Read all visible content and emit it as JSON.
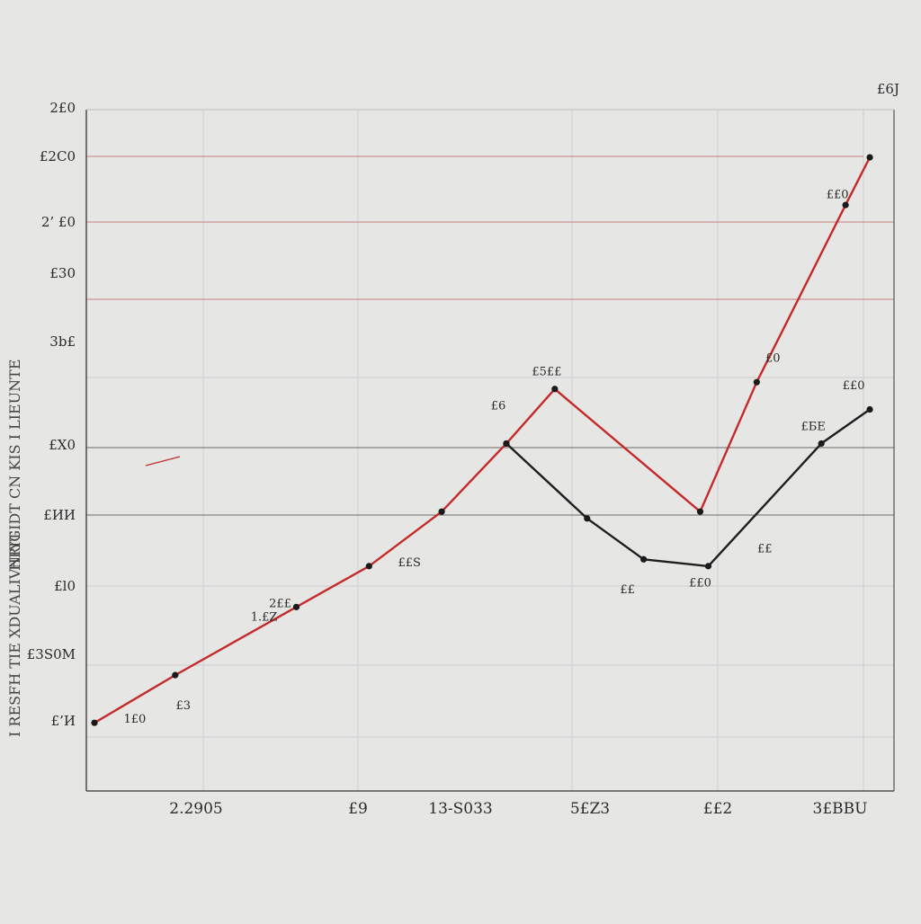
{
  "chart_data": {
    "type": "line",
    "title": "",
    "corner_label": "£6Ј",
    "ylabel_lines": [
      "HRIGIDT CN KIS I LIEUNTE",
      "I RESFH TIE XDUALIVNIYT"
    ],
    "y_tick_labels": [
      "2£0",
      "£2C0",
      "2’ £0",
      "£30",
      "3b£",
      "£X0",
      "£ИИ",
      "£l0",
      "£3S0М",
      "£’И"
    ],
    "x_tick_labels": [
      "2.2905",
      "£9",
      "13‐S033",
      "5£Z3",
      "££2",
      "3£ВВU"
    ],
    "colors": {
      "series_red": "#c42a2a",
      "series_black": "#1e1e1e",
      "grid": "#cfcfcf",
      "ref_line": "#c97f7f"
    },
    "x_range": [
      0,
      100
    ],
    "y_range": [
      0,
      100
    ],
    "series": [
      {
        "color": "#c42a2a",
        "points": [
          {
            "x": 1,
            "y": 10
          },
          {
            "x": 11,
            "y": 17
          },
          {
            "x": 26,
            "y": 27
          },
          {
            "x": 35,
            "y": 33
          },
          {
            "x": 44,
            "y": 41
          },
          {
            "x": 52,
            "y": 51
          },
          {
            "x": 58,
            "y": 59
          },
          {
            "x": 76,
            "y": 41
          },
          {
            "x": 83,
            "y": 60
          },
          {
            "x": 94,
            "y": 86
          },
          {
            "x": 97,
            "y": 93
          }
        ]
      },
      {
        "color": "#1e1e1e",
        "points": [
          {
            "x": 52,
            "y": 51
          },
          {
            "x": 62,
            "y": 40
          },
          {
            "x": 69,
            "y": 34
          },
          {
            "x": 77,
            "y": 33
          },
          {
            "x": 91,
            "y": 51
          },
          {
            "x": 97,
            "y": 56
          }
        ]
      }
    ],
    "data_labels": [
      {
        "x": 6,
        "y": 10,
        "text": "1£0"
      },
      {
        "x": 12,
        "y": 12,
        "text": "£3"
      },
      {
        "x": 22,
        "y": 25,
        "text": "1.£Z"
      },
      {
        "x": 24,
        "y": 27,
        "text": "2££"
      },
      {
        "x": 40,
        "y": 33,
        "text": "££S"
      },
      {
        "x": 51,
        "y": 56,
        "text": "£6"
      },
      {
        "x": 57,
        "y": 61,
        "text": "£5££"
      },
      {
        "x": 67,
        "y": 29,
        "text": "££"
      },
      {
        "x": 76,
        "y": 30,
        "text": "££0"
      },
      {
        "x": 84,
        "y": 35,
        "text": "££"
      },
      {
        "x": 90,
        "y": 53,
        "text": "£БE"
      },
      {
        "x": 85,
        "y": 63,
        "text": "£0"
      },
      {
        "x": 95,
        "y": 59,
        "text": "££0"
      },
      {
        "x": 93,
        "y": 87,
        "text": "££0"
      }
    ],
    "grid": true
  }
}
